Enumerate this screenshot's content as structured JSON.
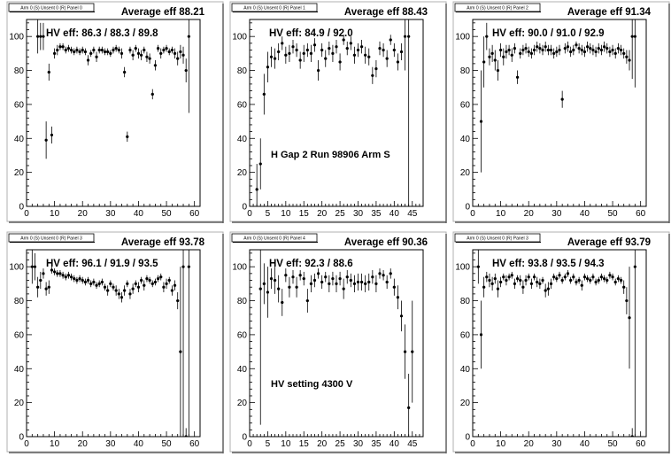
{
  "chart_data": [
    {
      "type": "scatter",
      "title": "Arm 0 (S) Unsent 0 (R) Panel 0",
      "average_label": "Average eff 88.21",
      "hv_eff": "HV eff:   86.3 / 88.3 / 89.8",
      "note": "",
      "xlim": [
        0,
        62
      ],
      "ylim": [
        0,
        110
      ],
      "xticks": [
        0,
        10,
        20,
        30,
        40,
        50,
        60
      ],
      "yticks": [
        0,
        20,
        40,
        60,
        80,
        100
      ],
      "x": [
        4,
        5,
        6,
        7,
        8,
        9,
        10,
        11,
        12,
        13,
        14,
        15,
        16,
        17,
        18,
        19,
        20,
        21,
        22,
        23,
        24,
        25,
        26,
        27,
        28,
        29,
        30,
        31,
        32,
        33,
        34,
        35,
        36,
        37,
        38,
        39,
        40,
        41,
        42,
        43,
        44,
        45,
        46,
        47,
        48,
        49,
        50,
        51,
        52,
        53,
        54,
        55,
        56,
        57,
        58
      ],
      "y": [
        100,
        100,
        100,
        39,
        79,
        42,
        90,
        92,
        94,
        94,
        92,
        93,
        92,
        91,
        92,
        91,
        92,
        91,
        86,
        90,
        92,
        88,
        92,
        92,
        91,
        91,
        90,
        92,
        93,
        92,
        90,
        79,
        41,
        92,
        89,
        93,
        90,
        89,
        92,
        88,
        87,
        66,
        83,
        93,
        90,
        92,
        93,
        91,
        92,
        90,
        87,
        91,
        89,
        80,
        100
      ],
      "yerr": [
        10,
        8,
        8,
        11,
        5,
        5,
        3,
        3,
        2,
        2,
        2,
        2,
        2,
        2,
        2,
        2,
        2,
        2,
        3,
        2,
        2,
        3,
        2,
        2,
        2,
        2,
        2,
        2,
        2,
        2,
        3,
        3,
        3,
        2,
        3,
        2,
        3,
        3,
        2,
        3,
        3,
        3,
        3,
        2,
        3,
        2,
        2,
        2,
        2,
        3,
        4,
        4,
        5,
        7,
        45
      ]
    },
    {
      "type": "scatter",
      "title": "Arm 0 (S) Unsent 0 (R) Panel 1",
      "average_label": "Average eff 88.43",
      "hv_eff": "HV eff:   84.9 / 92.0",
      "note": "H Gap 2 Run 98906 Arm S",
      "xlim": [
        0,
        48
      ],
      "ylim": [
        0,
        110
      ],
      "xticks": [
        0,
        5,
        10,
        15,
        20,
        25,
        30,
        35,
        40,
        45
      ],
      "yticks": [
        0,
        20,
        40,
        60,
        80,
        100
      ],
      "x": [
        2,
        3,
        4,
        5,
        6,
        7,
        8,
        9,
        10,
        11,
        12,
        13,
        14,
        15,
        16,
        17,
        18,
        19,
        20,
        21,
        22,
        23,
        24,
        25,
        26,
        27,
        28,
        29,
        30,
        31,
        32,
        33,
        34,
        35,
        36,
        37,
        38,
        39,
        40,
        41,
        42,
        43,
        44
      ],
      "y": [
        10,
        25,
        66,
        82,
        88,
        87,
        91,
        96,
        89,
        90,
        94,
        92,
        86,
        90,
        92,
        90,
        95,
        80,
        92,
        87,
        93,
        90,
        94,
        85,
        98,
        93,
        96,
        89,
        92,
        94,
        89,
        88,
        77,
        81,
        93,
        92,
        87,
        98,
        92,
        85,
        91,
        100,
        100
      ],
      "yerr": [
        15,
        15,
        12,
        9,
        6,
        6,
        5,
        4,
        5,
        5,
        4,
        4,
        5,
        5,
        4,
        5,
        4,
        6,
        4,
        5,
        4,
        5,
        4,
        5,
        3,
        4,
        4,
        5,
        4,
        4,
        5,
        5,
        5,
        5,
        4,
        4,
        5,
        3,
        4,
        5,
        5,
        20,
        100
      ]
    },
    {
      "type": "scatter",
      "title": "Arm 0 (S) Unsent 0 (R) Panel 2",
      "average_label": "Average eff 91.34",
      "hv_eff": "HV eff:   90.0 / 91.0 / 92.9",
      "note": "",
      "xlim": [
        0,
        62
      ],
      "ylim": [
        0,
        110
      ],
      "xticks": [
        0,
        10,
        20,
        30,
        40,
        50,
        60
      ],
      "yticks": [
        0,
        20,
        40,
        60,
        80,
        100
      ],
      "x": [
        3,
        4,
        5,
        6,
        7,
        8,
        9,
        10,
        11,
        12,
        13,
        14,
        15,
        16,
        17,
        18,
        19,
        20,
        21,
        22,
        23,
        24,
        25,
        26,
        27,
        28,
        29,
        30,
        31,
        32,
        33,
        34,
        35,
        36,
        37,
        38,
        39,
        40,
        41,
        42,
        43,
        44,
        45,
        46,
        47,
        48,
        49,
        50,
        51,
        52,
        53,
        54,
        55,
        56,
        57,
        58
      ],
      "y": [
        50,
        85,
        100,
        88,
        90,
        86,
        80,
        92,
        88,
        91,
        92,
        89,
        93,
        76,
        90,
        92,
        93,
        91,
        90,
        92,
        94,
        93,
        92,
        94,
        92,
        92,
        90,
        91,
        92,
        63,
        93,
        94,
        91,
        92,
        95,
        93,
        92,
        91,
        94,
        93,
        92,
        91,
        93,
        92,
        94,
        93,
        91,
        92,
        90,
        93,
        92,
        90,
        88,
        86,
        100,
        100
      ],
      "yerr": [
        30,
        15,
        8,
        5,
        5,
        6,
        6,
        4,
        5,
        4,
        3,
        4,
        3,
        4,
        3,
        3,
        3,
        3,
        3,
        3,
        3,
        3,
        3,
        3,
        3,
        3,
        3,
        3,
        3,
        5,
        3,
        3,
        3,
        3,
        2,
        3,
        3,
        3,
        3,
        3,
        3,
        3,
        3,
        3,
        3,
        3,
        3,
        3,
        3,
        3,
        3,
        3,
        4,
        6,
        25,
        30
      ]
    },
    {
      "type": "scatter",
      "title": "Arm 0 (S) Unsent 0 (R) Panel 3",
      "average_label": "Average eff 93.78",
      "hv_eff": "HV eff:   96.1 / 91.9 / 93.5",
      "note": "",
      "xlim": [
        0,
        62
      ],
      "ylim": [
        0,
        110
      ],
      "xticks": [
        0,
        10,
        20,
        30,
        40,
        50,
        60
      ],
      "yticks": [
        0,
        20,
        40,
        60,
        80,
        100
      ],
      "x": [
        2,
        3,
        4,
        5,
        6,
        7,
        8,
        9,
        10,
        11,
        12,
        13,
        14,
        15,
        16,
        17,
        18,
        19,
        20,
        21,
        22,
        23,
        24,
        25,
        26,
        27,
        28,
        29,
        30,
        31,
        32,
        33,
        34,
        35,
        36,
        37,
        38,
        39,
        40,
        41,
        42,
        43,
        44,
        45,
        46,
        47,
        48,
        49,
        50,
        51,
        52,
        53,
        54,
        55,
        56,
        57,
        58
      ],
      "y": [
        100,
        100,
        88,
        92,
        96,
        87,
        88,
        98,
        97,
        96,
        96,
        95,
        94,
        95,
        94,
        93,
        92,
        93,
        92,
        91,
        92,
        90,
        91,
        89,
        90,
        91,
        88,
        86,
        90,
        88,
        86,
        84,
        82,
        86,
        90,
        84,
        87,
        90,
        88,
        92,
        89,
        93,
        92,
        90,
        91,
        93,
        94,
        88,
        90,
        92,
        86,
        89,
        80,
        50,
        100,
        0,
        100
      ],
      "yerr": [
        10,
        8,
        6,
        5,
        3,
        4,
        4,
        2,
        2,
        2,
        2,
        2,
        2,
        2,
        2,
        2,
        2,
        2,
        2,
        2,
        2,
        2,
        2,
        2,
        2,
        2,
        2,
        3,
        2,
        2,
        3,
        3,
        3,
        3,
        2,
        3,
        3,
        2,
        3,
        2,
        3,
        2,
        2,
        2,
        2,
        2,
        2,
        3,
        3,
        2,
        3,
        3,
        5,
        50,
        100,
        5,
        100
      ]
    },
    {
      "type": "scatter",
      "title": "Arm 0 (S) Unsent 0 (R) Panel 4",
      "average_label": "Average eff 90.36",
      "hv_eff": "HV eff:   92.3 / 88.6",
      "note": "HV setting 4300 V",
      "xlim": [
        0,
        48
      ],
      "ylim": [
        0,
        110
      ],
      "xticks": [
        0,
        5,
        10,
        15,
        20,
        25,
        30,
        35,
        40,
        45
      ],
      "yticks": [
        0,
        20,
        40,
        60,
        80,
        100
      ],
      "x": [
        3,
        4,
        5,
        6,
        7,
        8,
        9,
        10,
        11,
        12,
        13,
        14,
        15,
        16,
        17,
        18,
        19,
        20,
        21,
        22,
        23,
        24,
        25,
        26,
        27,
        28,
        29,
        30,
        31,
        32,
        33,
        34,
        35,
        36,
        37,
        38,
        39,
        40,
        41,
        42,
        43,
        44,
        45
      ],
      "y": [
        87,
        90,
        85,
        93,
        92,
        87,
        79,
        95,
        88,
        94,
        88,
        95,
        93,
        80,
        90,
        92,
        96,
        91,
        94,
        90,
        93,
        90,
        93,
        87,
        94,
        92,
        90,
        91,
        91,
        90,
        91,
        94,
        90,
        96,
        95,
        91,
        96,
        88,
        82,
        71,
        50,
        17,
        50
      ],
      "yerr": [
        80,
        12,
        15,
        6,
        8,
        8,
        8,
        4,
        6,
        4,
        6,
        3,
        4,
        7,
        5,
        4,
        3,
        4,
        3,
        5,
        4,
        5,
        4,
        6,
        4,
        4,
        5,
        5,
        5,
        5,
        5,
        4,
        5,
        3,
        3,
        4,
        3,
        5,
        7,
        9,
        16,
        20,
        30
      ]
    },
    {
      "type": "scatter",
      "title": "Arm 0 (S) Unsent 0 (R) Panel 3",
      "average_label": "Average eff 93.79",
      "hv_eff": "HV eff:   93.8 / 93.5 / 94.3",
      "note": "",
      "xlim": [
        0,
        62
      ],
      "ylim": [
        0,
        110
      ],
      "xticks": [
        0,
        10,
        20,
        30,
        40,
        50,
        60
      ],
      "yticks": [
        0,
        20,
        40,
        60,
        80,
        100
      ],
      "x": [
        2,
        3,
        4,
        5,
        6,
        7,
        8,
        9,
        10,
        11,
        12,
        13,
        14,
        15,
        16,
        17,
        18,
        19,
        20,
        21,
        22,
        23,
        24,
        25,
        26,
        27,
        28,
        29,
        30,
        31,
        32,
        33,
        34,
        35,
        36,
        37,
        38,
        39,
        40,
        41,
        42,
        43,
        44,
        45,
        46,
        47,
        48,
        49,
        50,
        51,
        52,
        53,
        54,
        55,
        56,
        57,
        58
      ],
      "y": [
        100,
        60,
        88,
        94,
        92,
        90,
        93,
        87,
        91,
        94,
        92,
        94,
        95,
        90,
        93,
        92,
        88,
        92,
        94,
        90,
        94,
        91,
        90,
        92,
        86,
        87,
        90,
        94,
        93,
        95,
        92,
        94,
        96,
        92,
        94,
        91,
        92,
        89,
        94,
        93,
        92,
        94,
        91,
        92,
        94,
        93,
        92,
        95,
        94,
        91,
        93,
        92,
        88,
        80,
        70,
        0,
        100
      ],
      "yerr": [
        10,
        20,
        6,
        3,
        4,
        4,
        3,
        5,
        3,
        2,
        3,
        2,
        2,
        3,
        2,
        3,
        4,
        3,
        2,
        3,
        2,
        3,
        3,
        2,
        4,
        4,
        3,
        2,
        2,
        2,
        2,
        2,
        2,
        2,
        2,
        2,
        2,
        3,
        2,
        2,
        2,
        2,
        2,
        2,
        2,
        2,
        2,
        2,
        2,
        2,
        2,
        2,
        4,
        8,
        30,
        5,
        100
      ]
    }
  ]
}
